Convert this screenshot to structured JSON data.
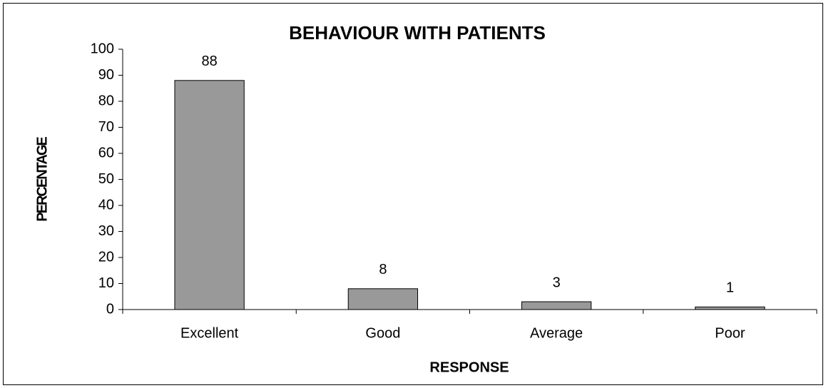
{
  "chart_data": {
    "type": "bar",
    "title": "BEHAVIOUR WITH PATIENTS",
    "x_label": "RESPONSE",
    "y_label": "PERCENTAGE",
    "categories": [
      "Excellent",
      "Good",
      "Average",
      "Poor"
    ],
    "values": [
      88,
      8,
      3,
      1
    ],
    "color": "#999999",
    "ylim": [
      0,
      100
    ],
    "yticks": [
      0,
      10,
      20,
      30,
      40,
      50,
      60,
      70,
      80,
      90,
      100
    ],
    "grid": false
  }
}
